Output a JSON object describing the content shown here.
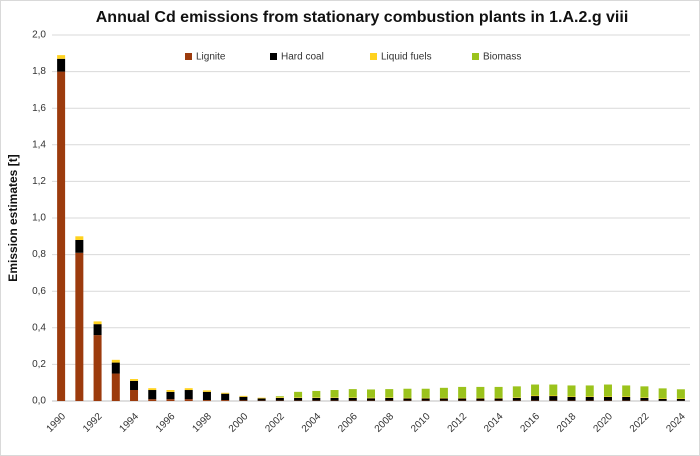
{
  "chart_data": {
    "type": "stacked_bar",
    "title": "Annual Cd emissions from stationary combustion plants in 1.A.2.g viii",
    "y_label": "Emission estimates [t]",
    "categories": [
      "1990",
      null,
      "1992",
      null,
      "1994",
      null,
      "1996",
      null,
      "1998",
      null,
      "2000",
      null,
      "2002",
      null,
      "2004",
      null,
      "2006",
      null,
      "2008",
      null,
      "2010",
      null,
      "2012",
      null,
      "2014",
      null,
      "2016",
      null,
      "2018",
      null,
      "2020",
      null,
      "2022",
      null,
      "2024"
    ],
    "series": [
      {
        "name": "Lignite",
        "color": "#9c3b0d",
        "values": [
          1.8,
          0.81,
          0.36,
          0.15,
          0.06,
          0.01,
          0.01,
          0.01,
          0.005,
          0.005,
          0.003,
          0.002,
          0.002,
          0.002,
          0.002,
          0.002,
          0.002,
          0.002,
          0.002,
          0.002,
          0.002,
          0.002,
          0.002,
          0.002,
          0.002,
          0.002,
          0.002,
          0.002,
          0.002,
          0.002,
          0.002,
          0.002,
          0.002,
          0.001,
          0.001
        ]
      },
      {
        "name": "Hard coal",
        "color": "#000000",
        "values": [
          0.07,
          0.07,
          0.06,
          0.06,
          0.05,
          0.05,
          0.04,
          0.05,
          0.045,
          0.035,
          0.02,
          0.012,
          0.015,
          0.015,
          0.015,
          0.015,
          0.015,
          0.013,
          0.015,
          0.012,
          0.012,
          0.012,
          0.012,
          0.012,
          0.012,
          0.015,
          0.025,
          0.025,
          0.02,
          0.02,
          0.02,
          0.02,
          0.015,
          0.01,
          0.01
        ]
      },
      {
        "name": "Liquid fuels",
        "color": "#ffd21f",
        "values": [
          0.02,
          0.02,
          0.015,
          0.015,
          0.01,
          0.01,
          0.01,
          0.01,
          0.008,
          0.005,
          0.005,
          0.004,
          0.004,
          0.003,
          0.003,
          0.003,
          0.003,
          0.003,
          0.003,
          0.003,
          0.003,
          0.003,
          0.003,
          0.003,
          0.003,
          0.003,
          0.003,
          0.003,
          0.003,
          0.003,
          0.003,
          0.003,
          0.003,
          0.003,
          0.003
        ]
      },
      {
        "name": "Biomass",
        "color": "#9bc31c",
        "values": [
          0,
          0,
          0,
          0,
          0,
          0,
          0,
          0,
          0,
          0,
          0,
          0,
          0.005,
          0.03,
          0.035,
          0.04,
          0.045,
          0.045,
          0.045,
          0.05,
          0.05,
          0.055,
          0.06,
          0.06,
          0.06,
          0.06,
          0.06,
          0.06,
          0.06,
          0.06,
          0.065,
          0.06,
          0.06,
          0.055,
          0.05
        ]
      }
    ],
    "ylim": [
      0,
      2
    ],
    "yticks": [
      {
        "value": 0,
        "label": "0,0"
      },
      {
        "value": 0.2,
        "label": "0,2"
      },
      {
        "value": 0.4,
        "label": "0,4"
      },
      {
        "value": 0.6,
        "label": "0,6"
      },
      {
        "value": 0.8,
        "label": "0,8"
      },
      {
        "value": 1,
        "label": "1,0"
      },
      {
        "value": 1.2,
        "label": "1,2"
      },
      {
        "value": 1.4,
        "label": "1,4"
      },
      {
        "value": 1.6,
        "label": "1,6"
      },
      {
        "value": 1.8,
        "label": "1,8"
      },
      {
        "value": 2,
        "label": "2,0"
      }
    ],
    "grid": true,
    "legend": "top"
  }
}
